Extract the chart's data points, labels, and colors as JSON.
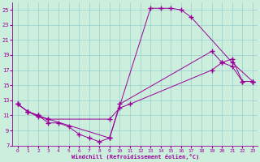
{
  "xlabel": "Windchill (Refroidissement éolien,°C)",
  "bg_color": "#cceedd",
  "line_color": "#990099",
  "grid_color": "#99cccc",
  "xlim": [
    -0.5,
    23.5
  ],
  "ylim": [
    7,
    26
  ],
  "xticks": [
    0,
    1,
    2,
    3,
    4,
    5,
    6,
    7,
    8,
    9,
    10,
    11,
    12,
    13,
    14,
    15,
    16,
    17,
    18,
    19,
    20,
    21,
    22,
    23
  ],
  "yticks": [
    7,
    9,
    11,
    13,
    15,
    17,
    19,
    21,
    23,
    25
  ],
  "series": [
    {
      "x": [
        0,
        1,
        2,
        3,
        9,
        13,
        14,
        15,
        16,
        17,
        21,
        23
      ],
      "y": [
        12.5,
        11.5,
        10.8,
        10.5,
        8.0,
        25.2,
        25.2,
        25.2,
        25.0,
        24.0,
        18.0,
        15.5
      ]
    },
    {
      "x": [
        0,
        1,
        2,
        3,
        9,
        10,
        11,
        19,
        20,
        21,
        22,
        23
      ],
      "y": [
        12.5,
        11.5,
        11.0,
        10.5,
        10.5,
        12.0,
        12.5,
        17.0,
        18.0,
        18.5,
        15.5,
        15.5
      ]
    },
    {
      "x": [
        0,
        1,
        2,
        3,
        4,
        5,
        6,
        7,
        8,
        9,
        10,
        19,
        20,
        21,
        22,
        23
      ],
      "y": [
        12.5,
        11.5,
        11.0,
        10.0,
        10.0,
        9.5,
        8.5,
        8.0,
        7.5,
        8.0,
        12.5,
        19.5,
        18.0,
        17.5,
        15.5,
        15.5
      ]
    }
  ]
}
